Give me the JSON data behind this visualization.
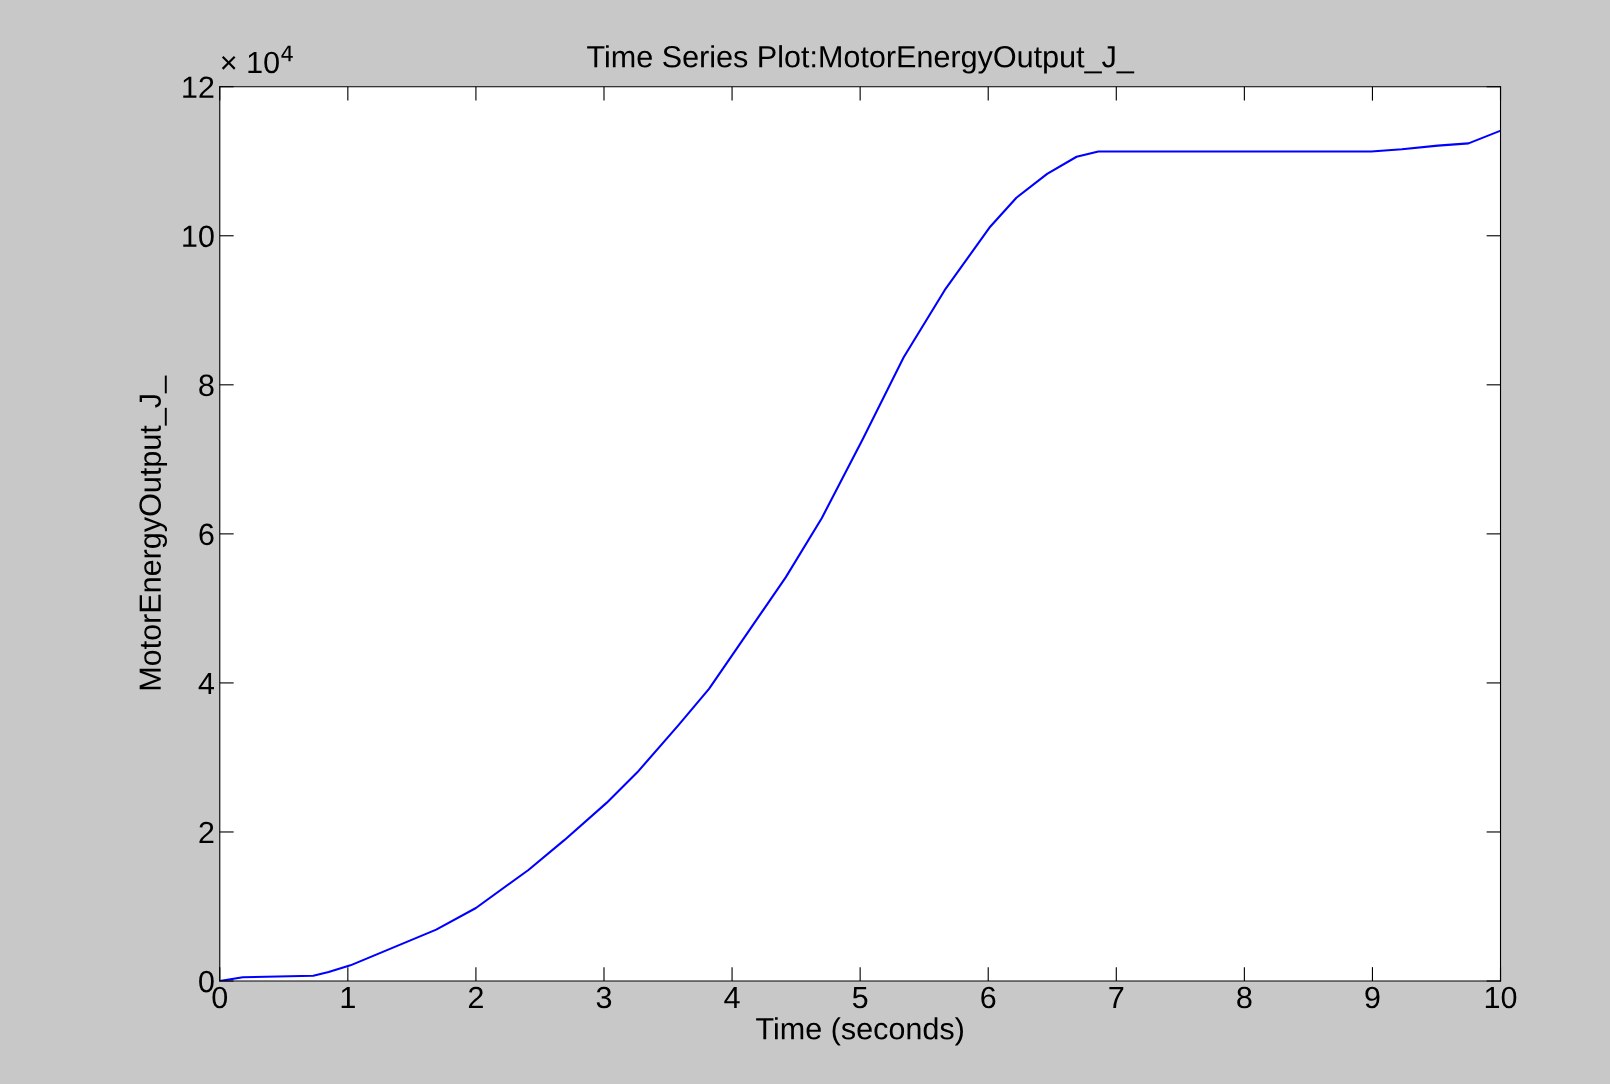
{
  "chart_data": {
    "type": "line",
    "title": "Time Series Plot:MotorEnergyOutput_J_",
    "xlabel": "Time (seconds)",
    "ylabel": "MotorEnergyOutput_J_",
    "annotations": [
      "× 10$^{4}$"
    ],
    "x": [
      0,
      0.18,
      0.73,
      0.85,
      1.02,
      1.69,
      2.0,
      2.41,
      2.69,
      3.02,
      3.26,
      3.58,
      3.82,
      4.0,
      4.42,
      4.7,
      5.02,
      5.34,
      5.66,
      6.01,
      6.22,
      6.46,
      6.69,
      6.86,
      7.5,
      8.99,
      9.23,
      9.51,
      9.75,
      10
    ],
    "series": [
      {
        "color": "#0000ff",
        "values": [
          0,
          0.05,
          0.07,
          0.12,
          0.21,
          0.69,
          0.98,
          1.49,
          1.89,
          2.39,
          2.8,
          3.43,
          3.92,
          4.37,
          5.42,
          6.21,
          7.27,
          8.37,
          9.27,
          10.11,
          10.51,
          10.83,
          11.06,
          11.13,
          11.13,
          11.13,
          11.16,
          11.21,
          11.24,
          11.41
        ]
      }
    ],
    "xlim": [
      0,
      10
    ],
    "xticks": [
      0,
      1,
      2,
      3,
      4,
      5,
      6,
      7,
      8,
      9,
      10
    ],
    "ylim": [
      0,
      12
    ],
    "yticks": [
      0,
      2,
      4,
      6,
      8,
      10,
      12
    ],
    "grid": false,
    "legend": false,
    "marker": "none",
    "line_style": "solid"
  }
}
